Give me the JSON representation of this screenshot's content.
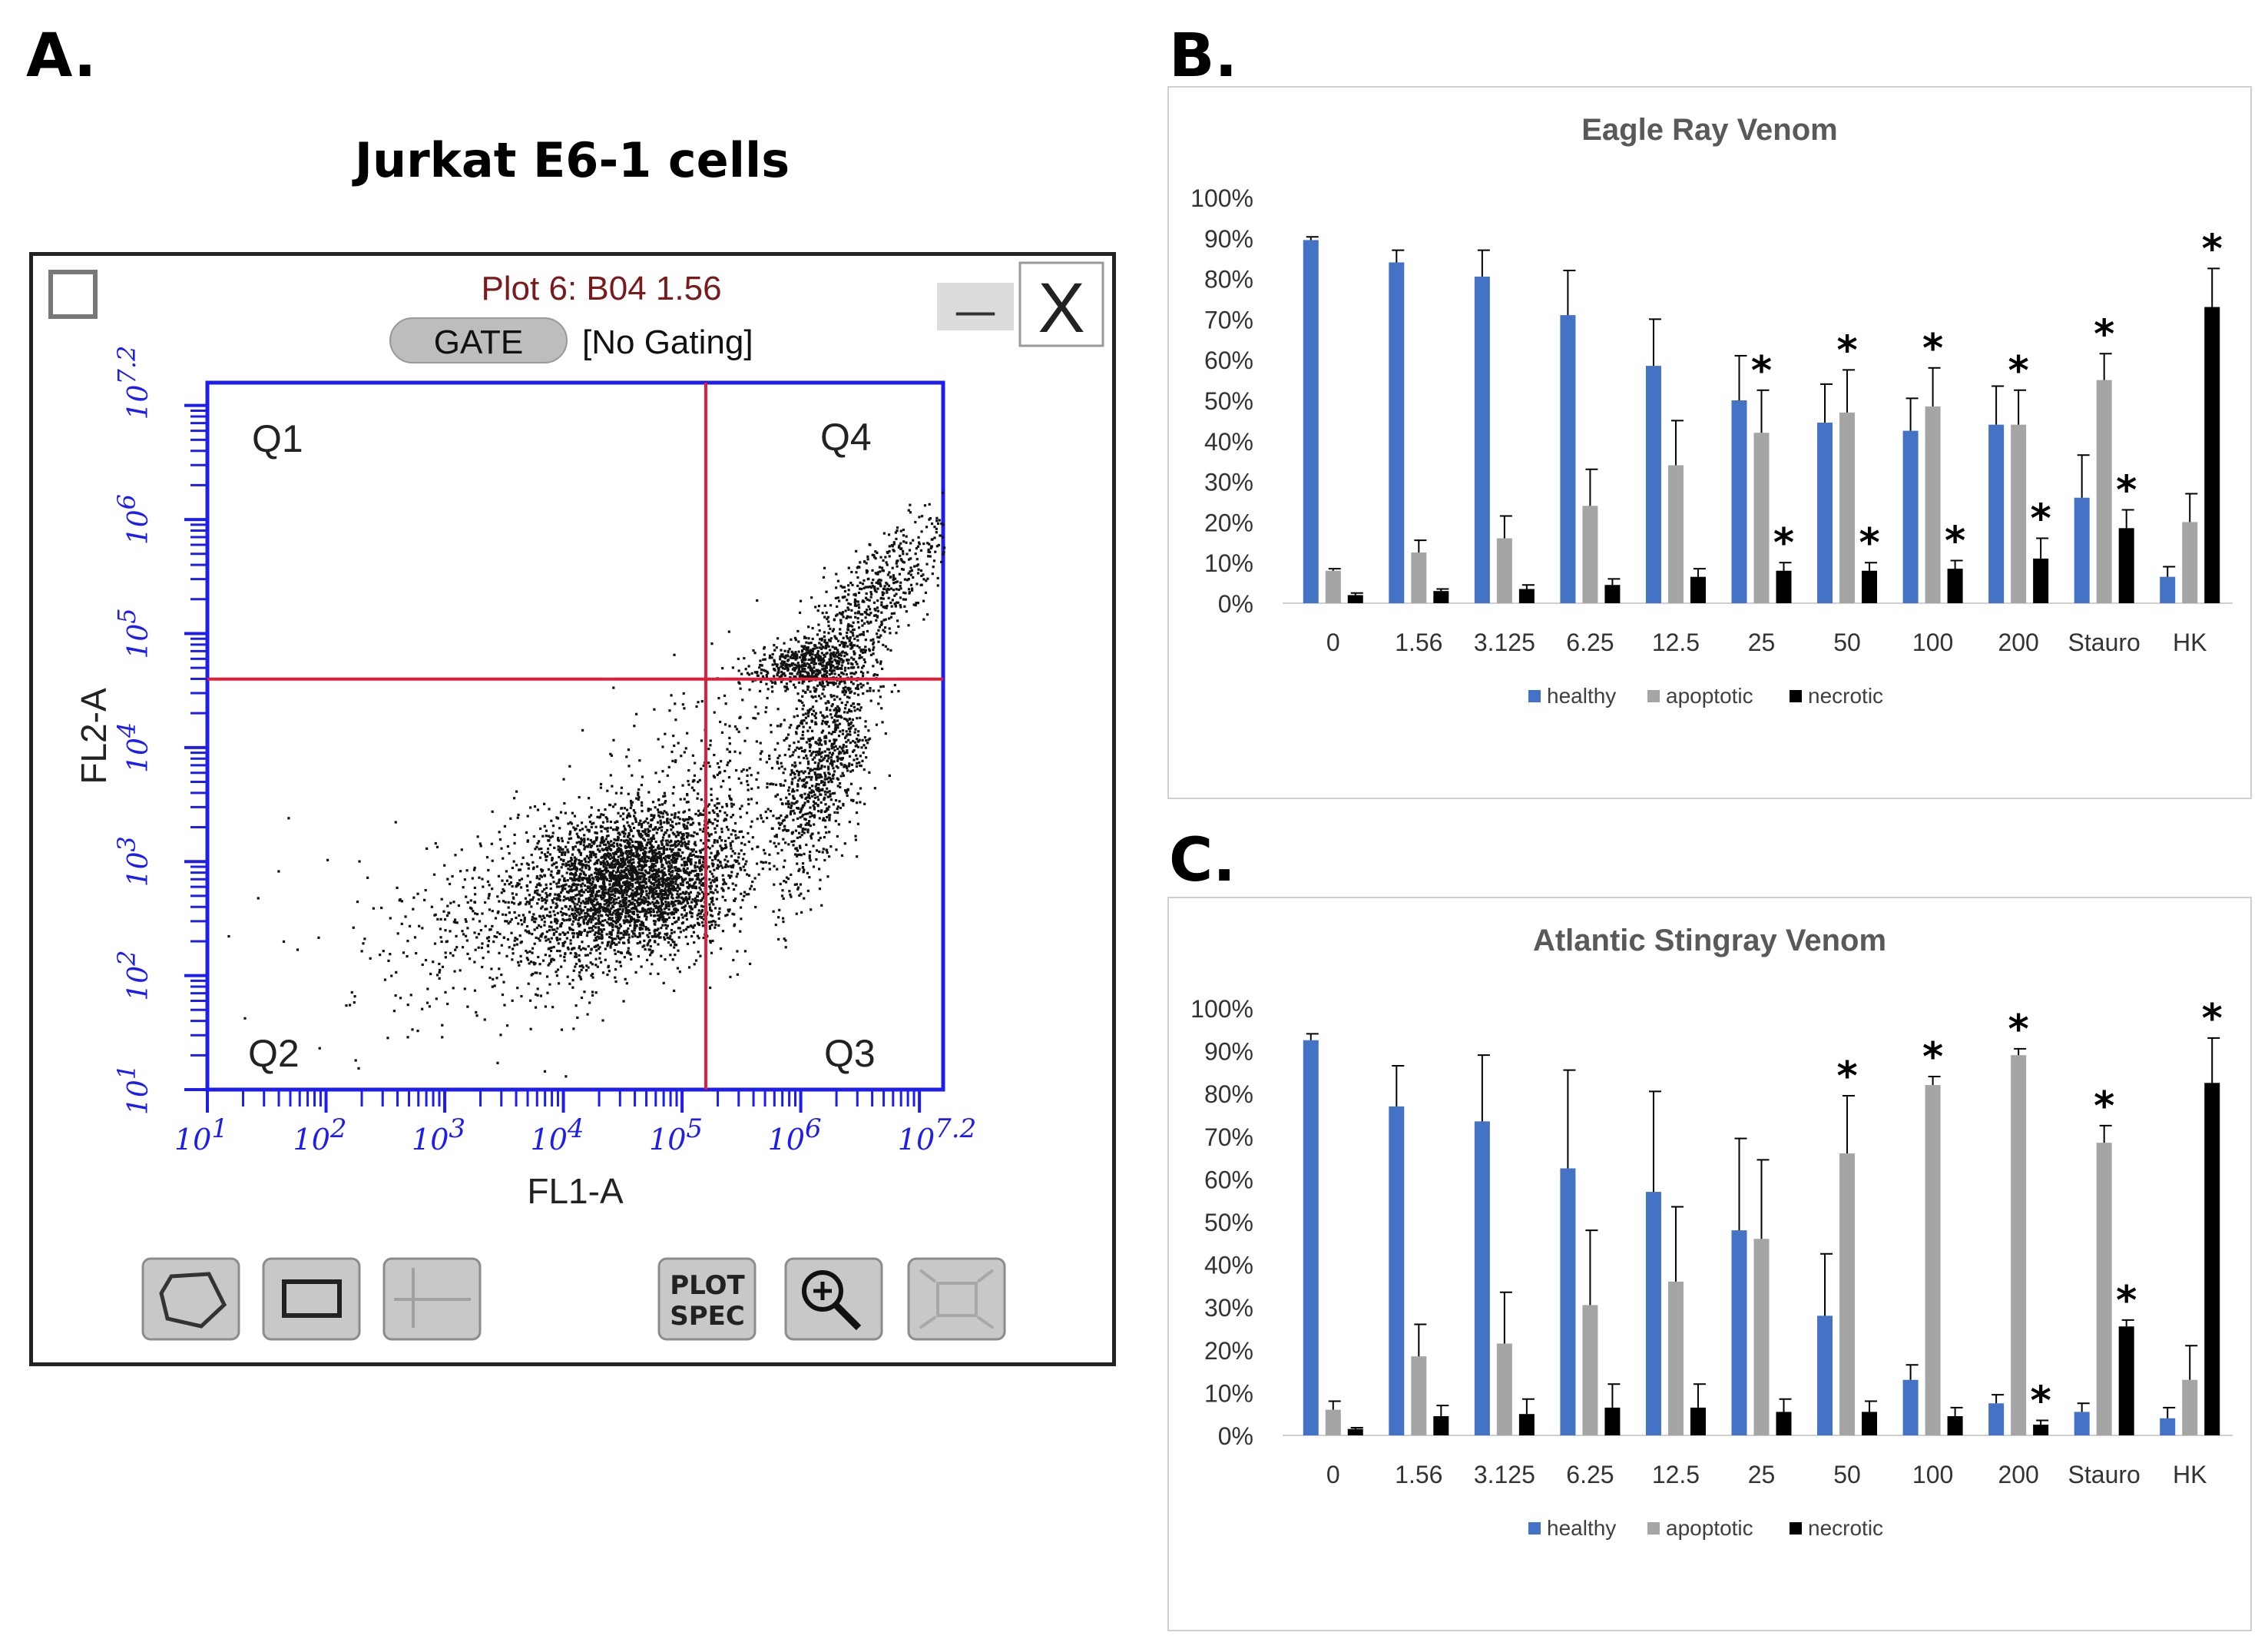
{
  "panels": {
    "a": "A.",
    "b": "B.",
    "c": "C."
  },
  "flow_plot": {
    "figure_title": "Jurkat E6-1 cells",
    "plot_title": "Plot 6: B04 1.56",
    "gate_button": "GATE",
    "gating_status": "[No Gating]",
    "minimize_label": "—",
    "close_label": "X",
    "x_axis_label": "FL1-A",
    "y_axis_label": "FL2-A",
    "x_tick_labels": [
      "10^1",
      "10^2",
      "10^3",
      "10^4",
      "10^5",
      "10^6",
      "10^7.2"
    ],
    "y_tick_labels": [
      "10^1",
      "10^2",
      "10^3",
      "10^4",
      "10^5",
      "10^6",
      "10^7.2"
    ],
    "axis_range_log10": [
      1,
      7.2
    ],
    "quadrants": {
      "q1": "Q1",
      "q2": "Q2",
      "q3": "Q3",
      "q4": "Q4"
    },
    "gate_log10": {
      "x": 5.2,
      "y": 4.6
    },
    "toolbar": {
      "polygon": "polygon-gate-icon",
      "rectangle": "rectangle-gate-icon",
      "quadrant": "quadrant-gate-icon",
      "plot_spec_line1": "PLOT",
      "plot_spec_line2": "SPEC",
      "zoom": "zoom-icon",
      "fit": "fit-icon"
    },
    "colors": {
      "axis": "#1d1df0",
      "gate": "#e01d3a",
      "dots": "#111111",
      "button": "#c8c8c8"
    }
  },
  "chart_data": [
    {
      "type": "bar",
      "title": "Eagle Ray Venom",
      "categories": [
        "0",
        "1.56",
        "3.125",
        "6.25",
        "12.5",
        "25",
        "50",
        "100",
        "200",
        "Stauro",
        "HK"
      ],
      "ylim": [
        0,
        100
      ],
      "y_tick_labels": [
        "0%",
        "10%",
        "20%",
        "30%",
        "40%",
        "50%",
        "60%",
        "70%",
        "80%",
        "90%",
        "100%"
      ],
      "series": [
        {
          "name": "healthy",
          "color": "#4472c4",
          "values": [
            89.5,
            84,
            80.5,
            71,
            58.5,
            50,
            44.5,
            42.5,
            44,
            26,
            6.5
          ],
          "errors": [
            0.8,
            3.0,
            6.5,
            11,
            11.5,
            11,
            9.5,
            8,
            9.5,
            10.5,
            2.5
          ],
          "significant": [
            false,
            false,
            false,
            false,
            false,
            false,
            false,
            false,
            false,
            false,
            false
          ]
        },
        {
          "name": "apoptotic",
          "color": "#a5a5a5",
          "values": [
            8,
            12.5,
            16,
            24,
            34,
            42,
            47,
            48.5,
            44,
            55,
            20
          ],
          "errors": [
            0.5,
            3,
            5.5,
            9,
            11,
            10.5,
            10.5,
            9.5,
            8.5,
            6.5,
            7
          ],
          "significant": [
            false,
            false,
            false,
            false,
            false,
            true,
            true,
            true,
            true,
            true,
            false
          ]
        },
        {
          "name": "necrotic",
          "color": "#000000",
          "values": [
            2,
            3,
            3.5,
            4.5,
            6.5,
            8,
            8,
            8.5,
            11,
            18.5,
            73
          ],
          "errors": [
            0.5,
            0.5,
            1,
            1.5,
            2,
            2,
            2,
            2,
            5,
            4.5,
            9.5
          ],
          "significant": [
            false,
            false,
            false,
            false,
            false,
            true,
            true,
            true,
            true,
            true,
            true
          ]
        }
      ],
      "significance_mark": "*",
      "legend": [
        "healthy",
        "apoptotic",
        "necrotic"
      ],
      "legend_position": "bottom"
    },
    {
      "type": "bar",
      "title": "Atlantic Stingray Venom",
      "categories": [
        "0",
        "1.56",
        "3.125",
        "6.25",
        "12.5",
        "25",
        "50",
        "100",
        "200",
        "Stauro",
        "HK"
      ],
      "ylim": [
        0,
        100
      ],
      "y_tick_labels": [
        "0%",
        "10%",
        "20%",
        "30%",
        "40%",
        "50%",
        "60%",
        "70%",
        "80%",
        "90%",
        "100%"
      ],
      "series": [
        {
          "name": "healthy",
          "color": "#4472c4",
          "values": [
            92.5,
            77,
            73.5,
            62.5,
            57,
            48,
            28,
            13,
            7.5,
            5.5,
            4
          ],
          "errors": [
            1.5,
            9.5,
            15.5,
            23,
            23.5,
            21.5,
            14.5,
            3.5,
            2,
            2,
            2.5
          ],
          "significant": [
            false,
            false,
            false,
            false,
            false,
            false,
            false,
            false,
            false,
            false,
            false
          ]
        },
        {
          "name": "apoptotic",
          "color": "#a5a5a5",
          "values": [
            6,
            18.5,
            21.5,
            30.5,
            36,
            46,
            66,
            82,
            89,
            68.5,
            13
          ],
          "errors": [
            2,
            7.5,
            12,
            17.5,
            17.5,
            18.5,
            13.5,
            2,
            1.5,
            4,
            8
          ],
          "significant": [
            false,
            false,
            false,
            false,
            false,
            false,
            true,
            true,
            true,
            true,
            false
          ]
        },
        {
          "name": "necrotic",
          "color": "#000000",
          "values": [
            1.5,
            4.5,
            5,
            6.5,
            6.5,
            5.5,
            5.5,
            4.5,
            2.5,
            25.5,
            82.5
          ],
          "errors": [
            0.3,
            2.5,
            3.5,
            5.5,
            5.5,
            3,
            2.5,
            2,
            1,
            1.5,
            10.5
          ],
          "significant": [
            false,
            false,
            false,
            false,
            false,
            false,
            false,
            false,
            true,
            true,
            true
          ]
        }
      ],
      "significance_mark": "*",
      "legend": [
        "healthy",
        "apoptotic",
        "necrotic"
      ],
      "legend_position": "bottom"
    }
  ]
}
